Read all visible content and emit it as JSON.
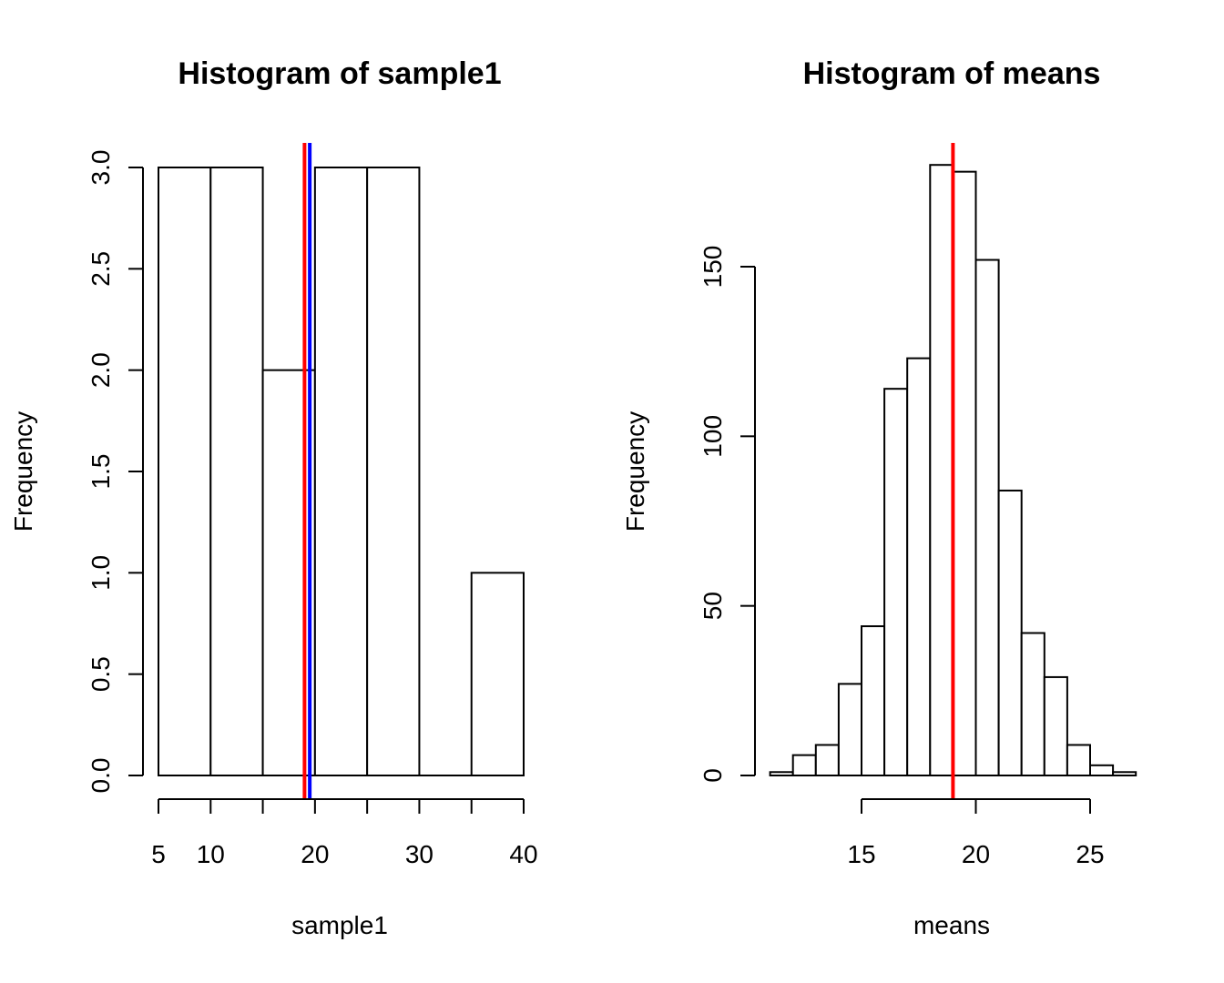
{
  "chart_data": [
    {
      "type": "bar",
      "title": "Histogram of sample1",
      "xlabel": "sample1",
      "ylabel": "Frequency",
      "bins": [
        [
          5,
          10
        ],
        [
          10,
          15
        ],
        [
          15,
          20
        ],
        [
          20,
          25
        ],
        [
          25,
          30
        ],
        [
          30,
          35
        ],
        [
          35,
          40
        ]
      ],
      "values": [
        3,
        3,
        2,
        3,
        3,
        0,
        1
      ],
      "xlim": [
        5,
        40
      ],
      "ylim": [
        0,
        3
      ],
      "x_ticks": [
        5,
        10,
        20,
        30,
        40
      ],
      "x_tick_labels": [
        "5",
        "10",
        "20",
        "30",
        "40"
      ],
      "y_ticks": [
        0,
        0.5,
        1,
        1.5,
        2,
        2.5,
        3
      ],
      "y_tick_labels": [
        "0.0",
        "0.5",
        "1.0",
        "1.5",
        "2.0",
        "2.5",
        "3.0"
      ],
      "vlines": [
        {
          "x": 19.0,
          "color": "#ff0000"
        },
        {
          "x": 19.5,
          "color": "#0000ff"
        }
      ]
    },
    {
      "type": "bar",
      "title": "Histogram of means",
      "xlabel": "means",
      "ylabel": "Frequency",
      "bins": [
        [
          11,
          12
        ],
        [
          12,
          13
        ],
        [
          13,
          14
        ],
        [
          14,
          15
        ],
        [
          15,
          16
        ],
        [
          16,
          17
        ],
        [
          17,
          18
        ],
        [
          18,
          19
        ],
        [
          19,
          20
        ],
        [
          20,
          21
        ],
        [
          21,
          22
        ],
        [
          22,
          23
        ],
        [
          23,
          24
        ],
        [
          24,
          25
        ],
        [
          25,
          26
        ],
        [
          26,
          27
        ]
      ],
      "values": [
        1,
        6,
        9,
        27,
        44,
        114,
        123,
        180,
        178,
        152,
        84,
        42,
        29,
        9,
        3,
        1
      ],
      "xlim": [
        15,
        25
      ],
      "ylim": [
        0,
        180
      ],
      "x_ticks": [
        15,
        20,
        25
      ],
      "x_tick_labels": [
        "15",
        "20",
        "25"
      ],
      "y_ticks": [
        0,
        50,
        100,
        150
      ],
      "y_tick_labels": [
        "0",
        "50",
        "100",
        "150"
      ],
      "vlines": [
        {
          "x": 19.0,
          "color": "#ff0000"
        }
      ]
    }
  ]
}
